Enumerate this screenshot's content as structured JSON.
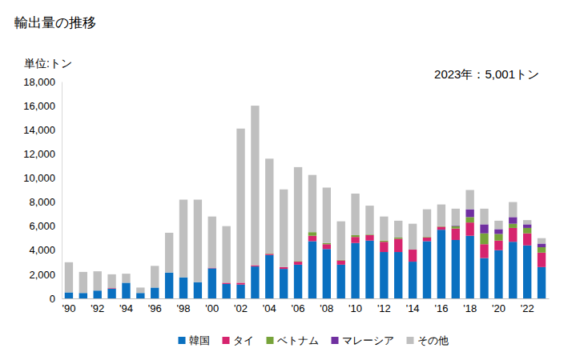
{
  "chart_data": {
    "type": "bar",
    "title": "輸出量の推移",
    "subtitle": "単位:トン",
    "annotation": "2023年：5,001トン",
    "stacked": true,
    "grid": false,
    "legend": "bottom",
    "categories": [
      "'90",
      null,
      "'92",
      null,
      "'94",
      null,
      "'96",
      null,
      "'98",
      null,
      "'00",
      null,
      "'02",
      null,
      "'04",
      null,
      "'06",
      null,
      "'08",
      null,
      "'10",
      null,
      "'12",
      null,
      "'14",
      null,
      "'16",
      null,
      "'18",
      null,
      "'20",
      null,
      "'22",
      null
    ],
    "series": [
      {
        "name": "韓国",
        "color": "#0a70c0",
        "values": [
          500,
          450,
          650,
          800,
          1300,
          450,
          900,
          2150,
          1750,
          1350,
          2500,
          1200,
          1150,
          2650,
          3600,
          2450,
          2800,
          4750,
          4100,
          2800,
          4600,
          4800,
          3850,
          3850,
          3050,
          4750,
          5700,
          4850,
          5200,
          3350,
          4000,
          4700,
          4400,
          2600
        ]
      },
      {
        "name": "タイ",
        "color": "#d6246e",
        "values": [
          0,
          0,
          0,
          50,
          0,
          0,
          0,
          0,
          0,
          0,
          50,
          100,
          150,
          100,
          100,
          150,
          250,
          450,
          400,
          350,
          500,
          450,
          850,
          1100,
          1000,
          300,
          250,
          950,
          1100,
          1150,
          800,
          1150,
          1000,
          1200
        ]
      },
      {
        "name": "ベトナム",
        "color": "#77a33a",
        "values": [
          0,
          0,
          0,
          0,
          0,
          0,
          0,
          0,
          0,
          0,
          0,
          0,
          0,
          0,
          50,
          0,
          50,
          300,
          100,
          50,
          150,
          50,
          100,
          100,
          0,
          50,
          50,
          200,
          450,
          900,
          550,
          350,
          450,
          450
        ]
      },
      {
        "name": "マレーシア",
        "color": "#7030a0",
        "values": [
          0,
          0,
          0,
          0,
          0,
          0,
          0,
          0,
          0,
          0,
          0,
          0,
          0,
          0,
          0,
          0,
          0,
          0,
          0,
          0,
          0,
          0,
          0,
          0,
          0,
          0,
          0,
          50,
          650,
          750,
          400,
          550,
          300,
          300
        ]
      },
      {
        "name": "その他",
        "color": "#bfbfbf",
        "values": [
          2500,
          1750,
          1600,
          1150,
          750,
          450,
          1800,
          3300,
          6450,
          6850,
          4250,
          4700,
          12800,
          13250,
          7850,
          6450,
          7800,
          4750,
          4600,
          3200,
          3450,
          2400,
          2000,
          1400,
          2150,
          2300,
          1800,
          1400,
          1600,
          1300,
          700,
          1250,
          350,
          451
        ]
      }
    ],
    "ylim": [
      0,
      18000
    ],
    "yticks": [
      0,
      {
        "value": 2000,
        "label": "2,000"
      },
      {
        "value": 4000,
        "label": "4,000"
      },
      {
        "value": 6000,
        "label": "6,000"
      },
      {
        "value": 8000,
        "label": "8,000"
      },
      {
        "value": 10000,
        "label": "10,000"
      },
      {
        "value": 12000,
        "label": "12,000"
      },
      {
        "value": 14000,
        "label": "14,000"
      },
      {
        "value": 16000,
        "label": "16,000"
      },
      {
        "value": 18000,
        "label": "18,000"
      }
    ]
  }
}
